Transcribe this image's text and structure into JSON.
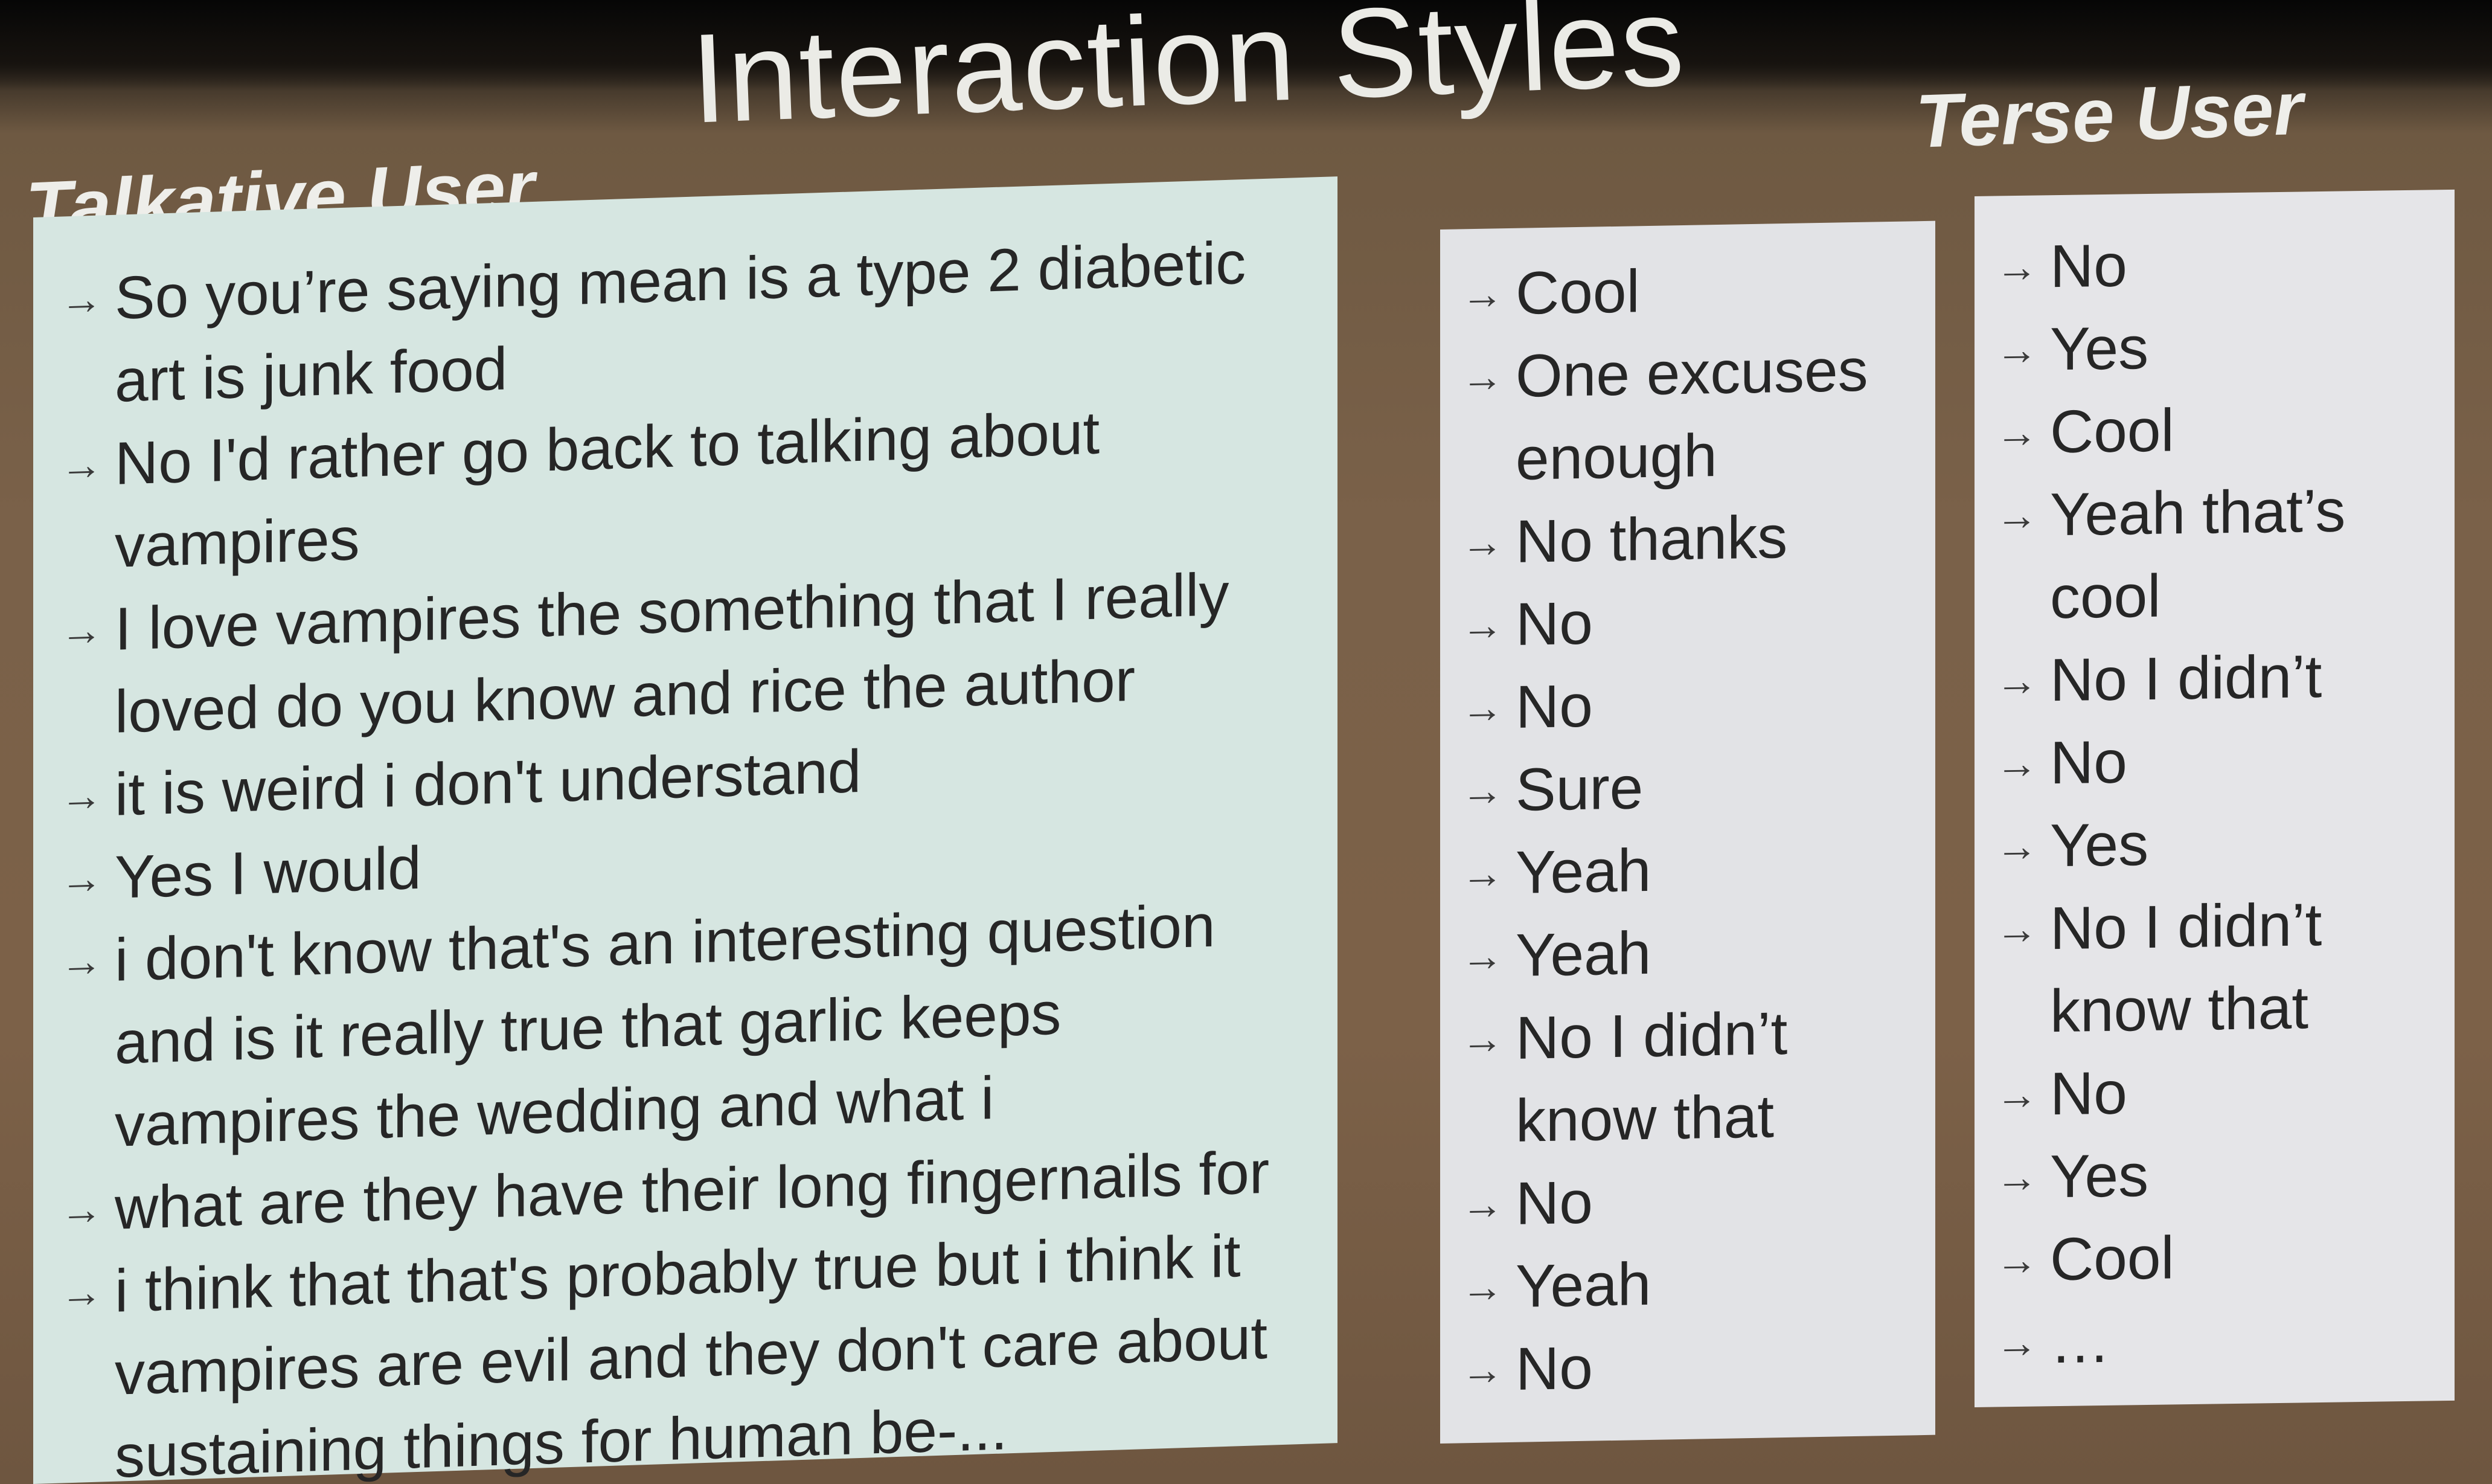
{
  "slide": {
    "title": "Interaction Styles",
    "talkative_heading": "Talkative User",
    "terse_heading": "Terse User"
  },
  "talkative": {
    "lines": [
      "So you’re saying mean is a type 2 diabetic art is junk food",
      "No I'd rather go back to talking about vampires",
      "I love vampires the something that I really loved do you know and rice the author",
      "it is weird i don't understand",
      "Yes I would",
      "i don't know that's an interesting question and is it really true that garlic keeps vampires the wedding and what i",
      "what are they have their long fingernails for",
      "i think that that's probably true but i think it vampires are evil and they don't care about sustaining things for human be-..."
    ]
  },
  "middle": {
    "lines": [
      "Cool",
      "One excuses enough",
      "No thanks",
      "No",
      "No",
      "Sure",
      "Yeah",
      "Yeah",
      "No I didn’t know that",
      "No",
      "Yeah",
      "No"
    ]
  },
  "terse": {
    "lines": [
      "No",
      "Yes",
      "Cool",
      "Yeah that’s cool",
      "No I didn’t",
      "No",
      "Yes",
      "No I didn’t know that",
      "No",
      "Yes",
      "Cool",
      "…"
    ]
  },
  "icons": {
    "bullet": "arrow-right-icon"
  },
  "colors": {
    "background": "#7a6149",
    "talkative_panel": "#d6e6e1",
    "terse_panel": "#e5e5e8",
    "text": "#262626",
    "title": "#ebebe6"
  }
}
